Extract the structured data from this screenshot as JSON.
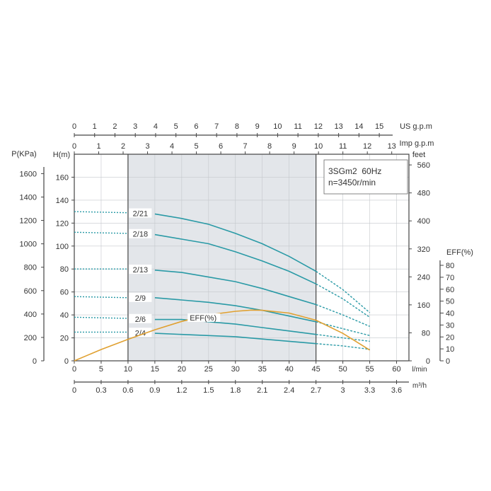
{
  "chart_data": {
    "type": "line",
    "model_label": "3SGm2  60Hz",
    "speed_label": "n=3450r/min",
    "axes": {
      "lpm": {
        "label": "l/min",
        "ticks": [
          0,
          5,
          10,
          15,
          20,
          25,
          30,
          35,
          40,
          45,
          50,
          55,
          60
        ],
        "range": [
          0,
          62.3
        ]
      },
      "m3h": {
        "label": "m³/h",
        "ticks": [
          "0",
          "0.3",
          "0.6",
          "0.9",
          "1.2",
          "1.5",
          "1.8",
          "2.1",
          "2.4",
          "2.7",
          "3",
          "3.3",
          "3.6"
        ]
      },
      "us_gpm": {
        "label": "US g.p.m",
        "ticks": [
          0,
          1,
          2,
          3,
          4,
          5,
          6,
          7,
          8,
          9,
          10,
          11,
          12,
          13,
          14,
          15
        ]
      },
      "imp_gpm": {
        "label": "Imp g.p.m",
        "ticks": [
          0,
          1,
          2,
          3,
          4,
          5,
          6,
          7,
          8,
          9,
          10,
          11,
          12,
          13
        ]
      },
      "head_m": {
        "label": "H(m)",
        "ticks": [
          0,
          20,
          40,
          60,
          80,
          100,
          120,
          140,
          160
        ],
        "range": [
          0,
          180
        ]
      },
      "pressure_kpa": {
        "label": "P(KPa)",
        "ticks": [
          0,
          200,
          400,
          600,
          800,
          1000,
          1200,
          1400,
          1600
        ]
      },
      "head_feet": {
        "label": "feet",
        "ticks": [
          0,
          80,
          160,
          240,
          320,
          400,
          480,
          560
        ]
      },
      "efficiency": {
        "label": "EFF(%)",
        "ticks": [
          0,
          10,
          20,
          30,
          40,
          50,
          60,
          70,
          80
        ]
      }
    },
    "shaded_range_lpm": [
      10,
      45
    ],
    "solid_range_lpm": [
      15,
      45
    ],
    "grid": true,
    "series": [
      {
        "name": "2/21",
        "points": [
          [
            0,
            130
          ],
          [
            10,
            129
          ],
          [
            15,
            128
          ],
          [
            20,
            124
          ],
          [
            25,
            119
          ],
          [
            30,
            111
          ],
          [
            35,
            102
          ],
          [
            40,
            91
          ],
          [
            45,
            78
          ],
          [
            50,
            62
          ],
          [
            55,
            42
          ]
        ]
      },
      {
        "name": "2/18",
        "points": [
          [
            0,
            112
          ],
          [
            10,
            111
          ],
          [
            15,
            110
          ],
          [
            20,
            106
          ],
          [
            25,
            102
          ],
          [
            30,
            95
          ],
          [
            35,
            87
          ],
          [
            40,
            78
          ],
          [
            45,
            67
          ],
          [
            50,
            54
          ],
          [
            55,
            38
          ]
        ]
      },
      {
        "name": "2/13",
        "points": [
          [
            0,
            80
          ],
          [
            10,
            80
          ],
          [
            15,
            79
          ],
          [
            20,
            77
          ],
          [
            25,
            73
          ],
          [
            30,
            69
          ],
          [
            35,
            63
          ],
          [
            40,
            56
          ],
          [
            45,
            49
          ],
          [
            50,
            40
          ],
          [
            55,
            30
          ]
        ]
      },
      {
        "name": "2/9",
        "points": [
          [
            0,
            56
          ],
          [
            10,
            55
          ],
          [
            15,
            55
          ],
          [
            20,
            53
          ],
          [
            25,
            51
          ],
          [
            30,
            48
          ],
          [
            35,
            44
          ],
          [
            40,
            39
          ],
          [
            45,
            34
          ],
          [
            50,
            28
          ],
          [
            55,
            22
          ]
        ]
      },
      {
        "name": "2/6",
        "points": [
          [
            0,
            38
          ],
          [
            10,
            37
          ],
          [
            15,
            36
          ],
          [
            20,
            36
          ],
          [
            25,
            34
          ],
          [
            30,
            32
          ],
          [
            35,
            29
          ],
          [
            40,
            26
          ],
          [
            45,
            23
          ],
          [
            50,
            20
          ],
          [
            55,
            17
          ]
        ]
      },
      {
        "name": "2/4",
        "points": [
          [
            0,
            25
          ],
          [
            10,
            25
          ],
          [
            15,
            24
          ],
          [
            20,
            23
          ],
          [
            25,
            22
          ],
          [
            30,
            21
          ],
          [
            35,
            19
          ],
          [
            40,
            17
          ],
          [
            45,
            15
          ],
          [
            50,
            13
          ],
          [
            55,
            10
          ]
        ]
      }
    ],
    "efficiency_curve": {
      "name": "EFF(%)",
      "points": [
        [
          0,
          0
        ],
        [
          5,
          9.5
        ],
        [
          10,
          18
        ],
        [
          15,
          26
        ],
        [
          20,
          33
        ],
        [
          25,
          38.5
        ],
        [
          30,
          41.5
        ],
        [
          33,
          42.5
        ],
        [
          35,
          42.3
        ],
        [
          40,
          40
        ],
        [
          45,
          34
        ],
        [
          50,
          23
        ],
        [
          55,
          9
        ]
      ]
    },
    "colors": {
      "curve": "#2a9aa6",
      "efficiency": "#e0a030",
      "shade": "#e3e6ea",
      "grid": "#c4c8cc",
      "axis": "#444444"
    }
  }
}
